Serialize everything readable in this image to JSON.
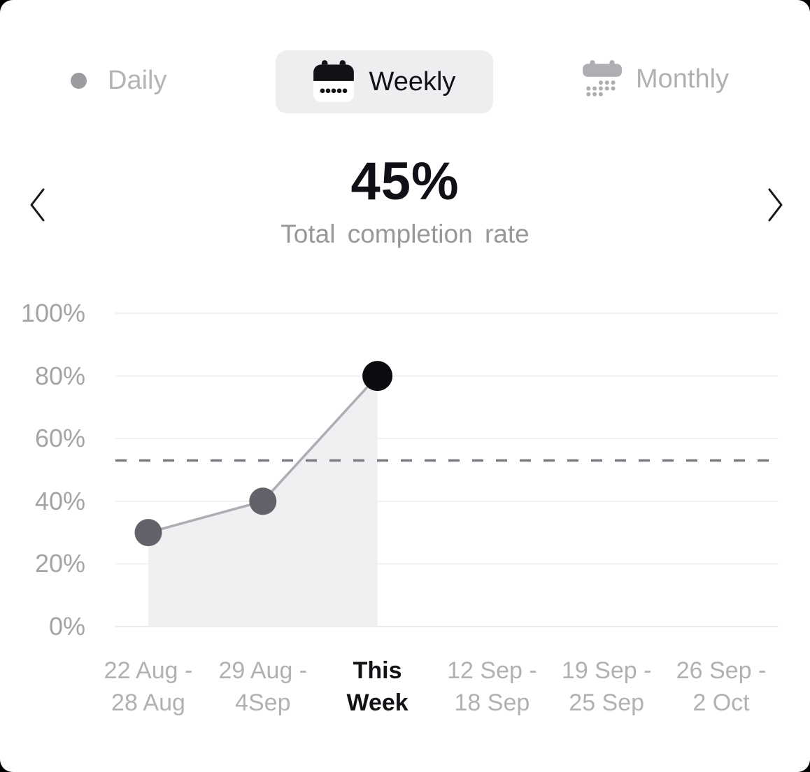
{
  "colors": {
    "page_background": "#000000",
    "card_background": "#ffffff",
    "active_tab_background": "#efedf0",
    "inactive_tab_text": "#b3b1b5",
    "active_text": "#131116",
    "grid": "#f1eff2",
    "axis_line": "#eceaee",
    "dashed": "#7b7b81",
    "line": "#aeadb3",
    "area_fill": "#f0eff2",
    "point_past": "#63616a",
    "point_current": "#0d0b0f"
  },
  "tabs": [
    {
      "label": "Daily",
      "icon": "dot-icon",
      "active": false
    },
    {
      "label": "Weekly",
      "icon": "calendar-weekly-icon",
      "active": true
    },
    {
      "label": "Monthly",
      "icon": "calendar-monthly-icon",
      "active": false
    }
  ],
  "chart_data": {
    "type": "area",
    "headline": {
      "value": "45%",
      "label": "Total completion rate"
    },
    "categories": [
      [
        "22 Aug -",
        "28 Aug"
      ],
      [
        "29 Aug -",
        "4Sep"
      ],
      [
        "This",
        "Week"
      ],
      [
        "12 Sep -",
        "18 Sep"
      ],
      [
        "19 Sep -",
        "25 Sep"
      ],
      [
        "26 Sep -",
        "2 Oct"
      ]
    ],
    "values": [
      30,
      40,
      80,
      null,
      null,
      null
    ],
    "y_ticks": [
      "100%",
      "80%",
      "60%",
      "40%",
      "20%",
      "0%"
    ],
    "ylim": [
      0,
      100
    ],
    "reference_line": 53,
    "highlight_index": 2,
    "grid": true,
    "legend": false
  }
}
